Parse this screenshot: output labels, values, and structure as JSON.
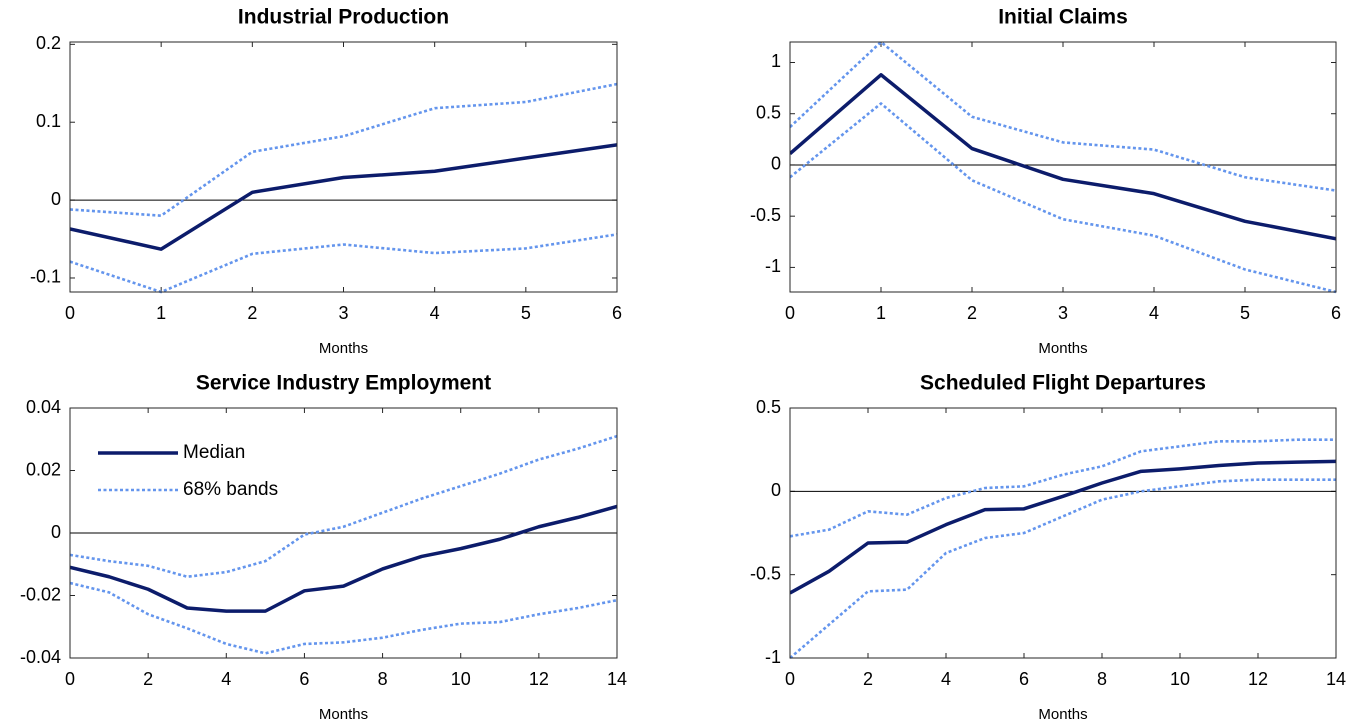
{
  "chart_data": [
    {
      "type": "line",
      "title": "Industrial Production",
      "xlabel": "Months",
      "x": [
        0,
        1,
        2,
        3,
        4,
        5,
        6
      ],
      "series": [
        {
          "name": "Median",
          "color": "#0c1c6b",
          "style": "solid",
          "values": [
            -0.037,
            -0.063,
            0.01,
            0.029,
            0.037,
            0.054,
            0.071
          ]
        },
        {
          "name": "68% bands",
          "color": "#6495ed",
          "style": "dotted",
          "upper": [
            -0.012,
            -0.02,
            0.062,
            0.082,
            0.118,
            0.126,
            0.149
          ],
          "lower": [
            -0.079,
            -0.118,
            -0.069,
            -0.057,
            -0.068,
            -0.062,
            -0.044
          ]
        }
      ],
      "hline": 0,
      "xlim": [
        0,
        6
      ],
      "xticks": [
        0,
        1,
        2,
        3,
        4,
        5,
        6
      ],
      "ylim": [
        -0.118,
        0.203
      ],
      "yticks": [
        -0.1,
        0,
        0.1,
        0.2
      ],
      "legend": false
    },
    {
      "type": "line",
      "title": "Initial Claims",
      "xlabel": "Months",
      "x": [
        0,
        1,
        2,
        3,
        4,
        5,
        6
      ],
      "series": [
        {
          "name": "Median",
          "color": "#0c1c6b",
          "style": "solid",
          "values": [
            0.11,
            0.88,
            0.16,
            -0.14,
            -0.28,
            -0.55,
            -0.72
          ]
        },
        {
          "name": "68% bands",
          "color": "#6495ed",
          "style": "dotted",
          "upper": [
            0.37,
            1.2,
            0.47,
            0.22,
            0.15,
            -0.12,
            -0.25
          ],
          "lower": [
            -0.12,
            0.6,
            -0.15,
            -0.53,
            -0.69,
            -1.02,
            -1.24
          ]
        }
      ],
      "hline": 0,
      "xlim": [
        0,
        6
      ],
      "xticks": [
        0,
        1,
        2,
        3,
        4,
        5,
        6
      ],
      "ylim": [
        -1.24,
        1.2
      ],
      "yticks": [
        -1,
        -0.5,
        0,
        0.5,
        1
      ],
      "legend": false
    },
    {
      "type": "line",
      "title": "Service Industry Employment",
      "xlabel": "Months",
      "x": [
        0,
        1,
        2,
        3,
        4,
        5,
        6,
        7,
        8,
        9,
        10,
        11,
        12,
        13,
        14
      ],
      "series": [
        {
          "name": "Median",
          "color": "#0c1c6b",
          "style": "solid",
          "values": [
            -0.011,
            -0.014,
            -0.018,
            -0.024,
            -0.025,
            -0.025,
            -0.0185,
            -0.017,
            -0.0115,
            -0.0075,
            -0.005,
            -0.002,
            0.002,
            0.005,
            0.0085
          ]
        },
        {
          "name": "68% bands",
          "color": "#6495ed",
          "style": "dotted",
          "upper": [
            -0.007,
            -0.009,
            -0.0105,
            -0.014,
            -0.0125,
            -0.009,
            -0.0005,
            0.002,
            0.0065,
            0.011,
            0.015,
            0.019,
            0.0235,
            0.027,
            0.031
          ],
          "lower": [
            -0.016,
            -0.019,
            -0.026,
            -0.0305,
            -0.0355,
            -0.0385,
            -0.0355,
            -0.035,
            -0.0335,
            -0.031,
            -0.029,
            -0.0285,
            -0.026,
            -0.024,
            -0.0215
          ]
        }
      ],
      "hline": 0,
      "xlim": [
        0,
        14
      ],
      "xticks": [
        0,
        2,
        4,
        6,
        8,
        10,
        12,
        14
      ],
      "ylim": [
        -0.04,
        0.04
      ],
      "yticks": [
        -0.04,
        -0.02,
        0,
        0.02,
        0.04
      ],
      "legend": "upper left"
    },
    {
      "type": "line",
      "title": "Scheduled Flight Departures",
      "xlabel": "Months",
      "x": [
        0,
        1,
        2,
        3,
        4,
        5,
        6,
        7,
        8,
        9,
        10,
        11,
        12,
        13,
        14
      ],
      "series": [
        {
          "name": "Median",
          "color": "#0c1c6b",
          "style": "solid",
          "values": [
            -0.61,
            -0.48,
            -0.31,
            -0.305,
            -0.2,
            -0.11,
            -0.105,
            -0.03,
            0.05,
            0.12,
            0.135,
            0.155,
            0.17,
            0.175,
            0.18
          ]
        },
        {
          "name": "68% bands",
          "color": "#6495ed",
          "style": "dotted",
          "upper": [
            -0.27,
            -0.23,
            -0.12,
            -0.14,
            -0.04,
            0.02,
            0.03,
            0.1,
            0.15,
            0.24,
            0.27,
            0.3,
            0.3,
            0.31,
            0.31
          ],
          "lower": [
            -1.0,
            -0.8,
            -0.6,
            -0.59,
            -0.37,
            -0.28,
            -0.25,
            -0.15,
            -0.05,
            0.0,
            0.03,
            0.06,
            0.07,
            0.07,
            0.07
          ]
        }
      ],
      "hline": 0,
      "xlim": [
        0,
        14
      ],
      "xticks": [
        0,
        2,
        4,
        6,
        8,
        10,
        12,
        14
      ],
      "ylim": [
        -1,
        0.5
      ],
      "yticks": [
        -1,
        -0.5,
        0,
        0.5
      ],
      "legend": false
    }
  ]
}
